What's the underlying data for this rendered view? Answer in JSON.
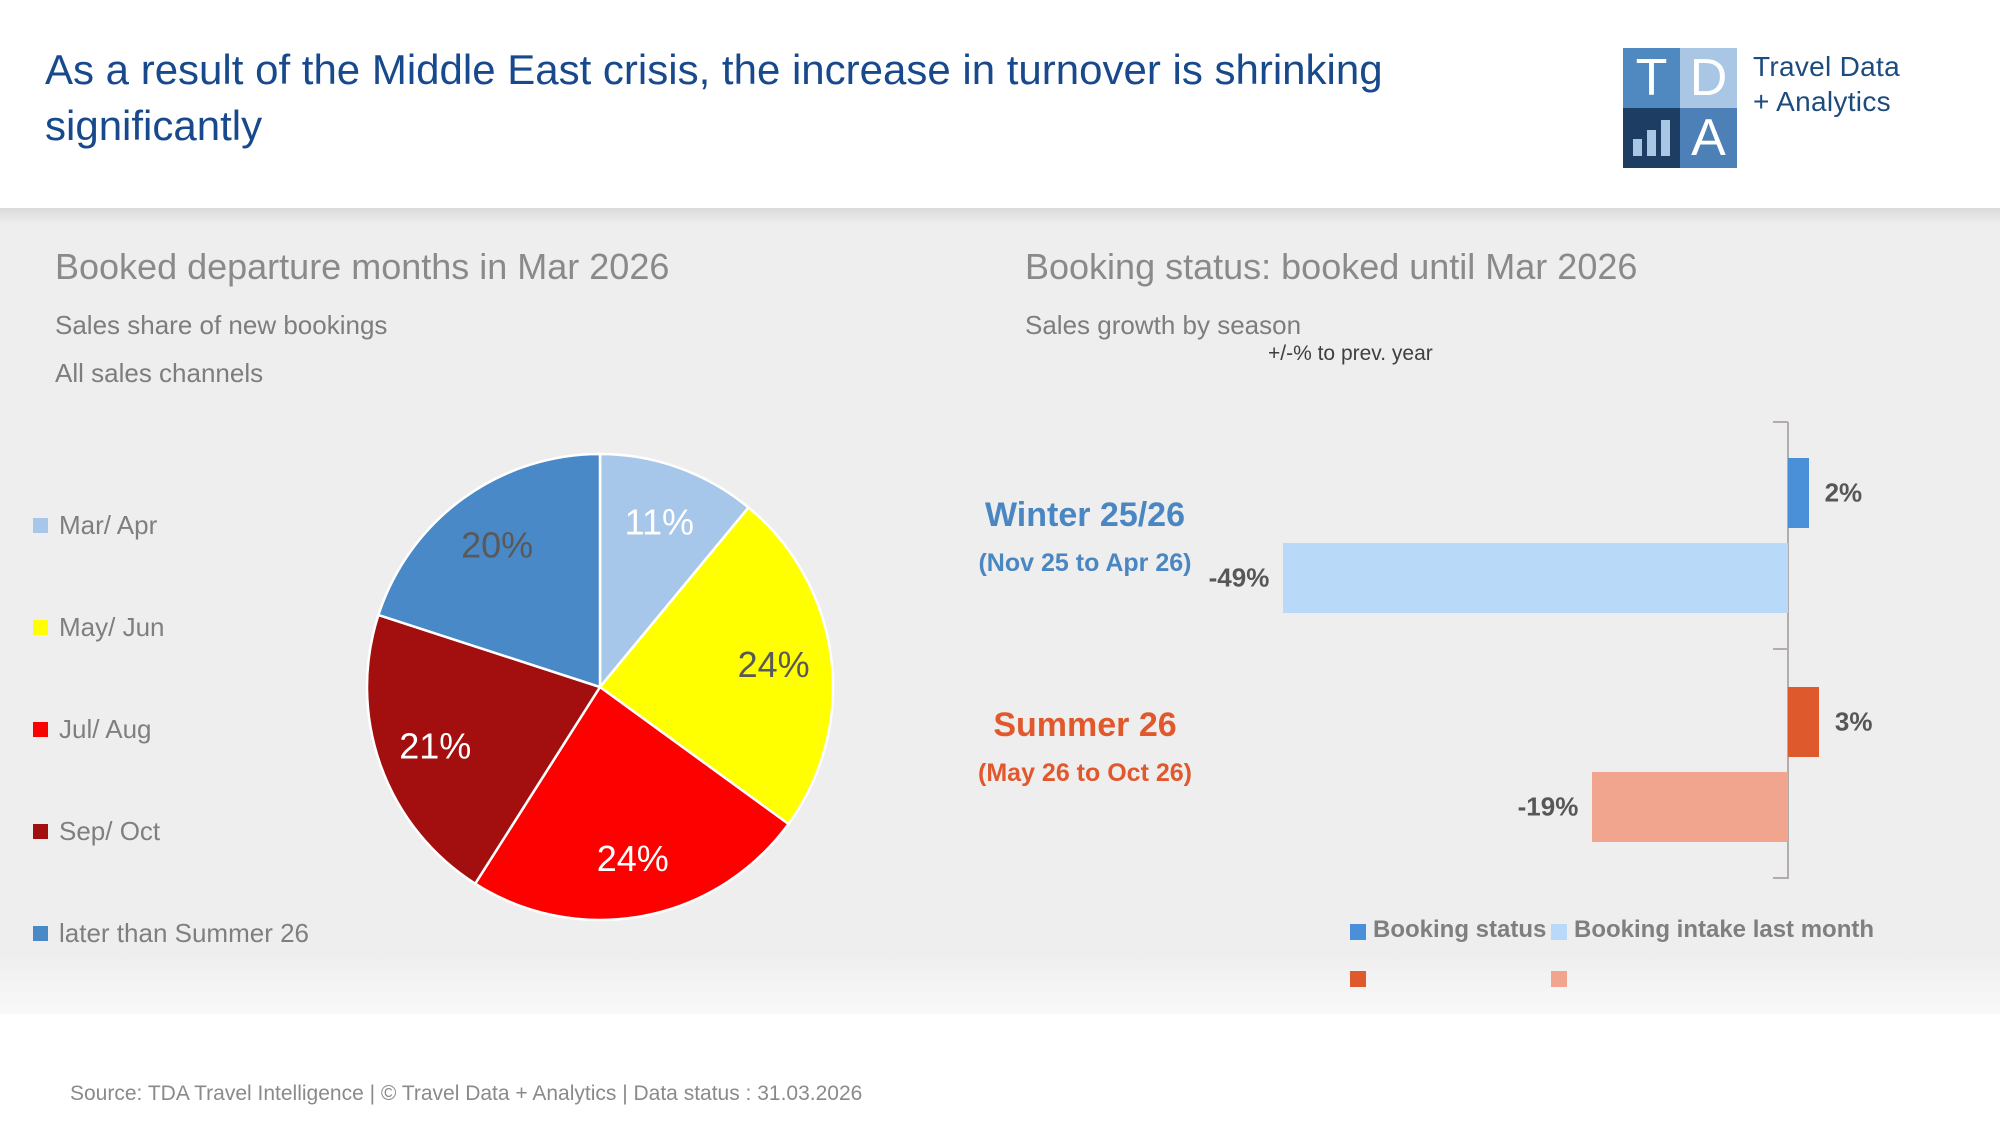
{
  "header": {
    "title": "As a result of the Middle East crisis, the increase in turnover is shrinking significantly",
    "logo": {
      "letter_t": "T",
      "letter_d": "D",
      "letter_a": "A",
      "brand_line1": "Travel Data",
      "brand_line2": "+ Analytics"
    }
  },
  "left_chart": {
    "title": "Booked departure months in Mar 2026",
    "subtitle1": "Sales share of new bookings",
    "subtitle2": "All sales channels"
  },
  "right_chart": {
    "title": "Booking status: booked until Mar 2026",
    "subtitle": "Sales growth by season",
    "axis_note": "+/-% to prev. year",
    "groups": [
      {
        "name": "Winter 25/26",
        "period": "(Nov 25 to Apr 26)",
        "name_color": "#4a86c2",
        "status": {
          "value": 2,
          "label": "2%",
          "color": "#4a90d8"
        },
        "intake": {
          "value": -49,
          "label": "-49%",
          "color": "#b9d9f9"
        }
      },
      {
        "name": "Summer 26",
        "period": "(May 26 to Oct 26)",
        "name_color": "#e0582c",
        "status": {
          "value": 3,
          "label": "3%",
          "color": "#de5a2d"
        },
        "intake": {
          "value": -19,
          "label": "-19%",
          "color": "#f2a58e"
        }
      }
    ],
    "legend": [
      {
        "label": "Booking status",
        "colors": [
          "#4a90d8",
          "#de5a2d"
        ]
      },
      {
        "label": "Booking intake last month",
        "colors": [
          "#b9d9f9",
          "#f2a58e"
        ]
      }
    ]
  },
  "footer": {
    "text": "Source: TDA Travel Intelligence   |   © Travel Data + Analytics   | Data status : 31.03.2026"
  },
  "chart_data": [
    {
      "type": "pie",
      "title": "Booked departure months in Mar 2026",
      "subtitle": "Sales share of new bookings, all sales channels",
      "categories": [
        "Mar/ Apr",
        "May/ Jun",
        "Jul/ Aug",
        "Sep/ Oct",
        "later than Summer 26"
      ],
      "values": [
        11,
        24,
        24,
        21,
        20
      ],
      "unit": "%",
      "colors": [
        "#a6c6ea",
        "#ffff00",
        "#fd0000",
        "#a30e0e",
        "#4a89c8"
      ],
      "label_colors": [
        "#ffffff",
        "#595959",
        "#ffffff",
        "#ffffff",
        "#595959"
      ],
      "start_angle_deg": 0,
      "direction": "clockwise",
      "legend_position": "left"
    },
    {
      "type": "bar",
      "orientation": "horizontal",
      "title": "Booking status: booked until Mar 2026",
      "subtitle": "Sales growth by season",
      "xlabel": "+/-% to prev. year",
      "categories": [
        "Winter 25/26 (Nov 25 to Apr 26)",
        "Summer 26 (May 26 to Oct 26)"
      ],
      "series": [
        {
          "name": "Booking status",
          "values": [
            2,
            3
          ]
        },
        {
          "name": "Booking intake last month",
          "values": [
            -49,
            -19
          ]
        }
      ],
      "value_labels": [
        [
          "2%",
          "3%"
        ],
        [
          "-49%",
          "-19%"
        ]
      ],
      "xlim": [
        -49,
        3
      ],
      "grid": false,
      "legend_position": "bottom"
    }
  ]
}
